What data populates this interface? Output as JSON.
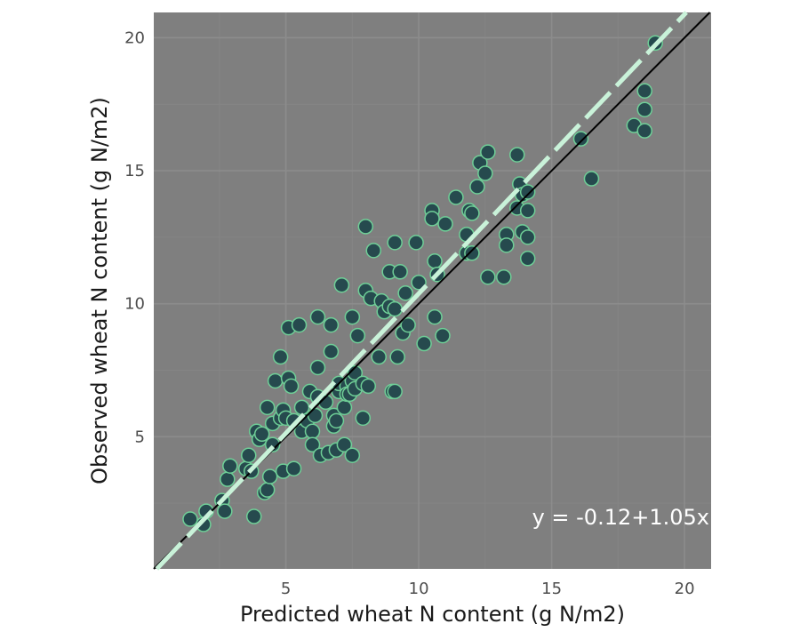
{
  "chart_data": {
    "type": "scatter",
    "xlabel": "Predicted wheat N content (g N/m2)",
    "ylabel": "Observed wheat N content (g N/m2)",
    "xlim": [
      0.03,
      21.0
    ],
    "ylim": [
      0.03,
      20.95
    ],
    "x_ticks": [
      5,
      10,
      15,
      20
    ],
    "y_ticks": [
      5,
      10,
      15,
      20
    ],
    "x_tick_labels": [
      "5",
      "10",
      "15",
      "20"
    ],
    "y_tick_labels": [
      "5",
      "10",
      "15",
      "20"
    ],
    "grid": true,
    "annotation": "y = -0.12+1.05x",
    "regression": {
      "intercept": -0.12,
      "slope": 1.05
    },
    "reference_line": {
      "intercept": 0,
      "slope": 1
    },
    "colors": {
      "panel": "#7f7f7f",
      "grid_major": "#8c8c8c",
      "grid_minor": "#858585",
      "point_fill": "#264a4e",
      "point_stroke": "#6fcf97",
      "regression_line": "#c9f2d9",
      "reference_line": "#000000"
    },
    "points": [
      [
        1.4,
        1.9
      ],
      [
        1.9,
        1.7
      ],
      [
        2.0,
        2.2
      ],
      [
        2.6,
        2.6
      ],
      [
        2.7,
        2.2
      ],
      [
        2.8,
        3.4
      ],
      [
        2.9,
        3.9
      ],
      [
        3.5,
        3.8
      ],
      [
        3.6,
        4.3
      ],
      [
        3.7,
        3.7
      ],
      [
        3.8,
        2.0
      ],
      [
        3.9,
        5.2
      ],
      [
        4.0,
        4.9
      ],
      [
        4.1,
        5.1
      ],
      [
        4.2,
        2.9
      ],
      [
        4.3,
        3.0
      ],
      [
        4.3,
        6.1
      ],
      [
        4.4,
        3.5
      ],
      [
        4.5,
        4.7
      ],
      [
        4.5,
        5.5
      ],
      [
        4.6,
        7.1
      ],
      [
        4.8,
        5.7
      ],
      [
        4.8,
        8.0
      ],
      [
        4.9,
        3.7
      ],
      [
        4.9,
        6.0
      ],
      [
        5.0,
        5.7
      ],
      [
        5.1,
        7.2
      ],
      [
        5.1,
        9.1
      ],
      [
        5.2,
        6.9
      ],
      [
        5.3,
        5.6
      ],
      [
        5.3,
        3.8
      ],
      [
        5.5,
        9.2
      ],
      [
        5.6,
        5.2
      ],
      [
        5.6,
        6.1
      ],
      [
        5.8,
        5.6
      ],
      [
        5.9,
        6.7
      ],
      [
        6.0,
        5.2
      ],
      [
        6.0,
        4.7
      ],
      [
        6.1,
        5.8
      ],
      [
        6.2,
        6.5
      ],
      [
        6.2,
        7.6
      ],
      [
        6.2,
        9.5
      ],
      [
        6.3,
        4.3
      ],
      [
        6.5,
        6.3
      ],
      [
        6.6,
        4.4
      ],
      [
        6.7,
        9.2
      ],
      [
        6.7,
        8.2
      ],
      [
        6.8,
        5.8
      ],
      [
        6.8,
        5.4
      ],
      [
        6.9,
        4.5
      ],
      [
        6.9,
        5.6
      ],
      [
        7.0,
        6.7
      ],
      [
        7.0,
        7.0
      ],
      [
        7.1,
        10.7
      ],
      [
        7.2,
        4.7
      ],
      [
        7.2,
        6.1
      ],
      [
        7.3,
        6.9
      ],
      [
        7.3,
        6.6
      ],
      [
        7.4,
        6.6
      ],
      [
        7.5,
        9.5
      ],
      [
        7.5,
        7.1
      ],
      [
        7.5,
        4.3
      ],
      [
        7.6,
        6.8
      ],
      [
        7.6,
        7.4
      ],
      [
        7.7,
        8.8
      ],
      [
        7.9,
        5.7
      ],
      [
        7.9,
        7.0
      ],
      [
        8.0,
        10.5
      ],
      [
        8.0,
        12.9
      ],
      [
        8.1,
        6.9
      ],
      [
        8.2,
        10.2
      ],
      [
        8.3,
        12.0
      ],
      [
        8.5,
        8.0
      ],
      [
        8.6,
        10.1
      ],
      [
        8.7,
        9.7
      ],
      [
        8.9,
        9.9
      ],
      [
        8.9,
        11.2
      ],
      [
        9.0,
        6.7
      ],
      [
        9.1,
        9.8
      ],
      [
        9.1,
        12.3
      ],
      [
        9.1,
        6.7
      ],
      [
        9.2,
        8.0
      ],
      [
        9.3,
        11.2
      ],
      [
        9.4,
        8.9
      ],
      [
        9.5,
        10.4
      ],
      [
        9.6,
        9.2
      ],
      [
        9.9,
        12.3
      ],
      [
        10.0,
        10.8
      ],
      [
        10.2,
        8.5
      ],
      [
        10.5,
        13.5
      ],
      [
        10.5,
        13.2
      ],
      [
        10.6,
        11.6
      ],
      [
        10.6,
        9.5
      ],
      [
        10.7,
        11.1
      ],
      [
        10.9,
        8.8
      ],
      [
        11.0,
        13.0
      ],
      [
        11.4,
        14.0
      ],
      [
        11.8,
        12.6
      ],
      [
        11.8,
        11.9
      ],
      [
        11.9,
        13.5
      ],
      [
        12.0,
        11.9
      ],
      [
        12.0,
        13.4
      ],
      [
        12.2,
        14.4
      ],
      [
        12.3,
        15.3
      ],
      [
        12.5,
        14.9
      ],
      [
        12.6,
        15.7
      ],
      [
        12.6,
        11.0
      ],
      [
        13.2,
        11.0
      ],
      [
        13.3,
        12.6
      ],
      [
        13.3,
        12.2
      ],
      [
        13.7,
        13.6
      ],
      [
        13.7,
        15.6
      ],
      [
        13.8,
        14.5
      ],
      [
        13.9,
        12.7
      ],
      [
        13.9,
        14.1
      ],
      [
        14.1,
        13.5
      ],
      [
        14.1,
        14.2
      ],
      [
        14.1,
        11.7
      ],
      [
        14.1,
        12.5
      ],
      [
        16.1,
        16.2
      ],
      [
        16.5,
        14.7
      ],
      [
        18.1,
        16.7
      ],
      [
        18.5,
        16.5
      ],
      [
        18.5,
        17.3
      ],
      [
        18.5,
        18.0
      ],
      [
        18.9,
        19.8
      ]
    ]
  }
}
